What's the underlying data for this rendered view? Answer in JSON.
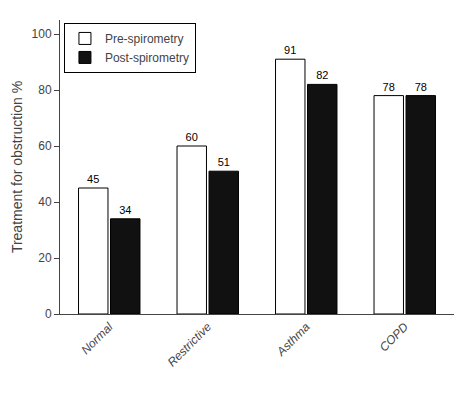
{
  "chart_data": {
    "type": "bar",
    "categories": [
      "Normal",
      "Restrictive",
      "Asthma",
      "COPD"
    ],
    "series": [
      {
        "name": "Pre-spirometry",
        "color": "#ffffff",
        "values": [
          45,
          60,
          91,
          78
        ]
      },
      {
        "name": "Post-spirometry",
        "color": "#111111",
        "values": [
          34,
          51,
          82,
          78
        ]
      }
    ],
    "ylabel": "Treatment for obstruction %",
    "ylim": [
      0,
      105
    ],
    "yticks": [
      0,
      20,
      40,
      60,
      80,
      100
    ],
    "legend": "upper left",
    "data_labels": true,
    "grid": false
  }
}
